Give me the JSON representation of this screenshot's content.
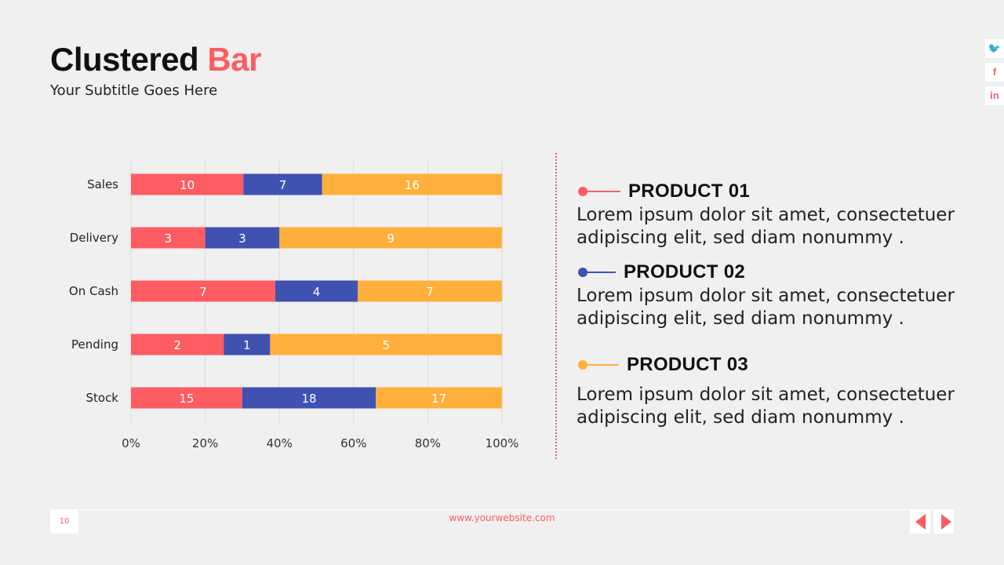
{
  "header": {
    "title_main": "Clustered ",
    "title_accent": "Bar",
    "subtitle": "Your Subtitle Goes Here"
  },
  "social": [
    {
      "icon": "twitter-icon",
      "glyph": "🐦"
    },
    {
      "icon": "facebook-icon",
      "glyph": "f"
    },
    {
      "icon": "linkedin-icon",
      "glyph": "in"
    }
  ],
  "chart_data": {
    "type": "bar",
    "orientation": "horizontal",
    "stacking": "percent",
    "categories": [
      "Sales",
      "Delivery",
      "On Cash",
      "Pending",
      "Stock"
    ],
    "series": [
      {
        "values": [
          10,
          3,
          7,
          2,
          15
        ],
        "color": "#fd5c63"
      },
      {
        "values": [
          7,
          3,
          4,
          1,
          18
        ],
        "color": "#3f51b1"
      },
      {
        "values": [
          16,
          9,
          7,
          5,
          17
        ],
        "color": "#ffaf3c"
      }
    ],
    "xticks": [
      "0%",
      "20%",
      "40%",
      "60%",
      "80%",
      "100%"
    ],
    "xlim": [
      0,
      100
    ],
    "grid": true
  },
  "products": [
    {
      "title": "PRODUCT 01",
      "desc": "Lorem ipsum dolor sit amet, consectetuer adipiscing elit, sed diam nonummy .",
      "color": "#fd5c63"
    },
    {
      "title": "PRODUCT 02",
      "desc": "Lorem ipsum dolor sit amet, consectetuer adipiscing elit, sed diam nonummy .",
      "color": "#3f51b1"
    },
    {
      "title": "PRODUCT 03",
      "desc": "Lorem ipsum dolor sit amet, consectetuer adipiscing elit, sed diam nonummy .",
      "color": "#ffaf3c"
    }
  ],
  "footer": {
    "page": "10",
    "url": "www.yourwebsite.com"
  }
}
